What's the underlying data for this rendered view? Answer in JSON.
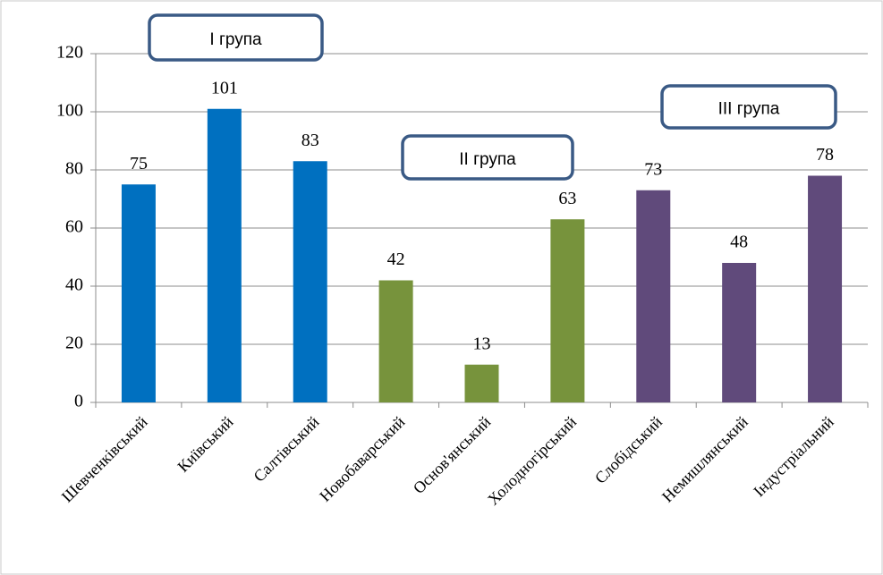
{
  "chart_data": {
    "type": "bar",
    "categories": [
      "Шевченківський",
      "Київський",
      "Салтівський",
      "Новобаварський",
      "Основ'янський",
      "Холодногірський",
      "Слобідський",
      "Немишлянський",
      "Індустріальний"
    ],
    "values": [
      75,
      101,
      83,
      42,
      13,
      63,
      73,
      48,
      78
    ],
    "colors": [
      "#0070c0",
      "#0070c0",
      "#0070c0",
      "#77933c",
      "#77933c",
      "#77933c",
      "#604a7b",
      "#604a7b",
      "#604a7b"
    ],
    "ylim": [
      0,
      120
    ],
    "yticks": [
      0,
      20,
      40,
      60,
      80,
      100,
      120
    ],
    "grid": true,
    "annotations": [
      "I група",
      "II група",
      "III група"
    ]
  }
}
